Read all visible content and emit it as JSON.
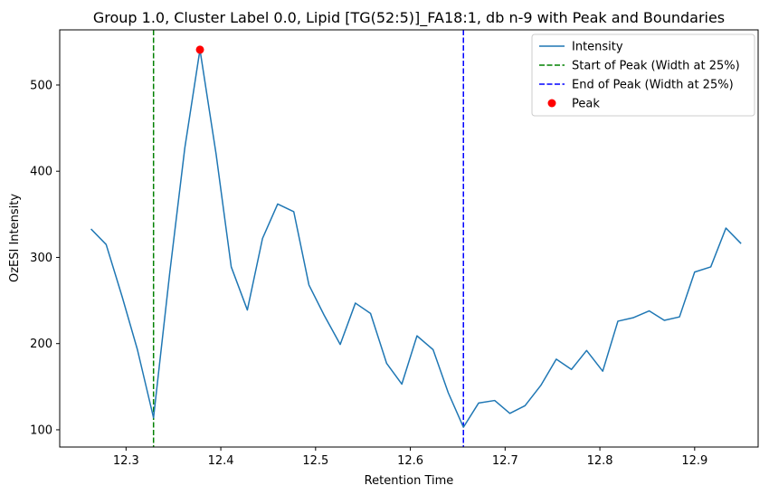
{
  "chart_data": {
    "type": "line",
    "title": "Group 1.0, Cluster Label 0.0, Lipid [TG(52:5)]_FA18:1, db n-9 with Peak and Boundaries",
    "xlabel": "Retention Time",
    "ylabel": "OzESI Intensity",
    "xlim": [
      12.23,
      12.967
    ],
    "ylim": [
      80,
      564
    ],
    "xticks": [
      12.3,
      12.4,
      12.5,
      12.6,
      12.7,
      12.8,
      12.9
    ],
    "yticks": [
      100,
      200,
      300,
      400,
      500
    ],
    "grid": false,
    "legend_position": "top-right",
    "series": [
      {
        "name": "Intensity",
        "color": "#1f77b4",
        "x": [
          12.263,
          12.279,
          12.296,
          12.312,
          12.329,
          12.346,
          12.362,
          12.378,
          12.395,
          12.411,
          12.428,
          12.444,
          12.46,
          12.477,
          12.493,
          12.509,
          12.526,
          12.542,
          12.558,
          12.575,
          12.591,
          12.607,
          12.624,
          12.64,
          12.656,
          12.672,
          12.689,
          12.705,
          12.721,
          12.738,
          12.754,
          12.77,
          12.786,
          12.803,
          12.819,
          12.835,
          12.852,
          12.868,
          12.884,
          12.9,
          12.917,
          12.933,
          12.949
        ],
        "values": [
          333,
          315,
          254,
          193,
          114,
          281,
          427,
          541,
          420,
          289,
          239,
          322,
          362,
          353,
          268,
          233,
          199,
          247,
          235,
          177,
          153,
          209,
          193,
          143,
          103,
          131,
          134,
          119,
          128,
          152,
          182,
          170,
          192,
          168,
          226,
          230,
          238,
          227,
          231,
          283,
          289,
          334,
          316
        ]
      }
    ],
    "vertical_lines": [
      {
        "name": "Start of Peak (Width at 25%)",
        "x": 12.329,
        "color": "#008000",
        "style": "dashed"
      },
      {
        "name": "End of Peak (Width at 25%)",
        "x": 12.656,
        "color": "#0000ff",
        "style": "dashed"
      }
    ],
    "points": [
      {
        "name": "Peak",
        "x": 12.378,
        "y": 541,
        "color": "#ff0000"
      }
    ]
  }
}
